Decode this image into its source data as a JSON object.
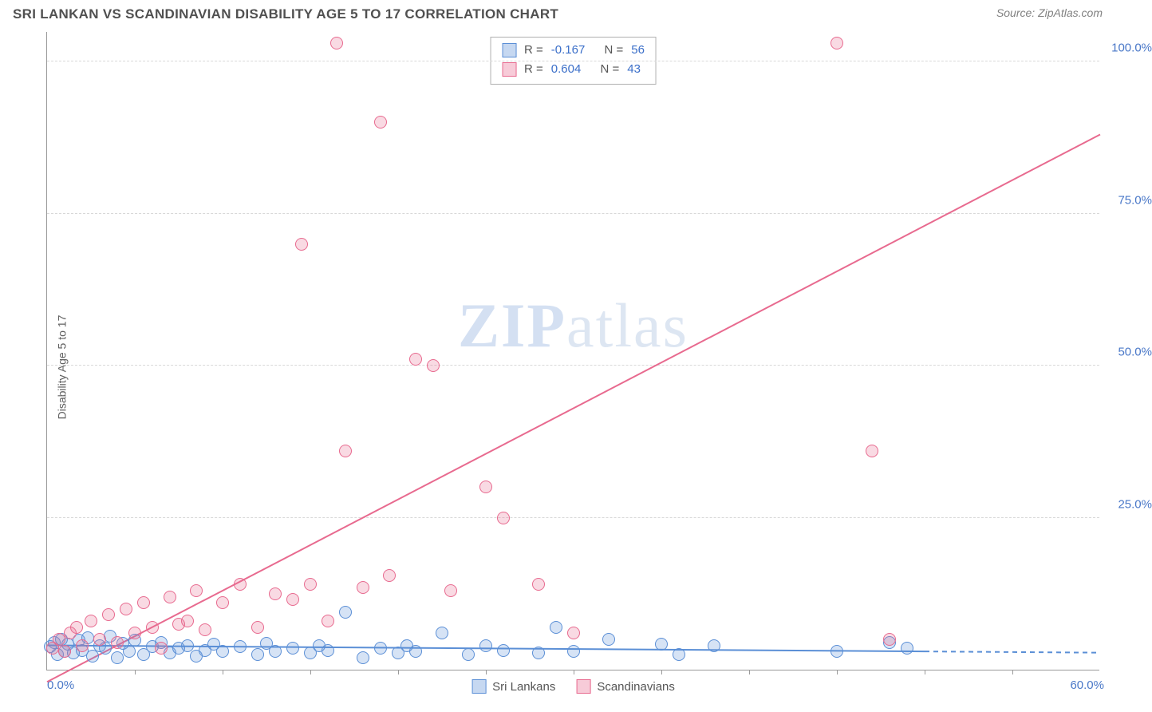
{
  "header": {
    "title": "SRI LANKAN VS SCANDINAVIAN DISABILITY AGE 5 TO 17 CORRELATION CHART",
    "source": "Source: ZipAtlas.com"
  },
  "watermark": {
    "bold": "ZIP",
    "light": "atlas"
  },
  "chart": {
    "type": "scatter",
    "ylabel": "Disability Age 5 to 17",
    "xlim": [
      0,
      60
    ],
    "ylim": [
      0,
      105
    ],
    "x_ticks_minor_step": 5,
    "y_ticks": [
      25,
      50,
      75,
      100
    ],
    "y_tick_labels": [
      "25.0%",
      "50.0%",
      "75.0%",
      "100.0%"
    ],
    "x_left_label": "0.0%",
    "x_right_label": "60.0%",
    "background_color": "#ffffff",
    "grid_color": "#d8d8d8",
    "axis_color": "#9a9a9a",
    "tick_label_color": "#4a78c8",
    "marker_radius": 8,
    "marker_opacity_fill": 0.25,
    "marker_stroke_width": 1.3,
    "series": [
      {
        "name": "Sri Lankans",
        "color": "#5b8fd6",
        "R": "-0.167",
        "N": "56",
        "trend": {
          "x1": 0,
          "y1": 4.0,
          "x2": 50,
          "y2": 3.0,
          "dash_after_x": 50,
          "dash_to_x": 60
        },
        "points": [
          [
            0.2,
            3.8
          ],
          [
            0.4,
            4.5
          ],
          [
            0.6,
            2.5
          ],
          [
            0.8,
            5.0
          ],
          [
            1.0,
            3.0
          ],
          [
            1.2,
            4.2
          ],
          [
            1.5,
            2.8
          ],
          [
            1.8,
            4.8
          ],
          [
            2.0,
            3.2
          ],
          [
            2.3,
            5.2
          ],
          [
            2.6,
            2.2
          ],
          [
            3.0,
            4.0
          ],
          [
            3.3,
            3.5
          ],
          [
            3.6,
            5.5
          ],
          [
            4.0,
            2.0
          ],
          [
            4.3,
            4.3
          ],
          [
            4.7,
            3.0
          ],
          [
            5.0,
            4.8
          ],
          [
            5.5,
            2.5
          ],
          [
            6.0,
            3.8
          ],
          [
            6.5,
            4.5
          ],
          [
            7.0,
            2.8
          ],
          [
            7.5,
            3.5
          ],
          [
            8.0,
            4.0
          ],
          [
            8.5,
            2.2
          ],
          [
            9.0,
            3.2
          ],
          [
            9.5,
            4.2
          ],
          [
            10.0,
            3.0
          ],
          [
            11.0,
            3.8
          ],
          [
            12.0,
            2.5
          ],
          [
            12.5,
            4.3
          ],
          [
            13.0,
            3.0
          ],
          [
            14.0,
            3.5
          ],
          [
            15.0,
            2.8
          ],
          [
            15.5,
            4.0
          ],
          [
            16.0,
            3.2
          ],
          [
            17.0,
            9.5
          ],
          [
            18.0,
            2.0
          ],
          [
            19.0,
            3.5
          ],
          [
            20.0,
            2.8
          ],
          [
            20.5,
            4.0
          ],
          [
            21.0,
            3.0
          ],
          [
            22.5,
            6.0
          ],
          [
            24.0,
            2.5
          ],
          [
            25.0,
            4.0
          ],
          [
            26.0,
            3.2
          ],
          [
            28.0,
            2.8
          ],
          [
            29.0,
            7.0
          ],
          [
            30.0,
            3.0
          ],
          [
            32.0,
            5.0
          ],
          [
            35.0,
            4.2
          ],
          [
            36.0,
            2.5
          ],
          [
            38.0,
            4.0
          ],
          [
            45.0,
            3.0
          ],
          [
            48.0,
            4.5
          ],
          [
            49.0,
            3.5
          ]
        ]
      },
      {
        "name": "Scandinavians",
        "color": "#e86a8f",
        "R": "0.604",
        "N": "43",
        "trend": {
          "x1": 0,
          "y1": -2,
          "x2": 60,
          "y2": 88,
          "dash_after_x": null
        },
        "points": [
          [
            0.3,
            3.5
          ],
          [
            0.7,
            5.0
          ],
          [
            1.0,
            3.0
          ],
          [
            1.3,
            6.0
          ],
          [
            1.7,
            7.0
          ],
          [
            2.0,
            4.0
          ],
          [
            2.5,
            8.0
          ],
          [
            3.0,
            5.0
          ],
          [
            3.5,
            9.0
          ],
          [
            4.0,
            4.5
          ],
          [
            4.5,
            10.0
          ],
          [
            5.0,
            6.0
          ],
          [
            5.5,
            11.0
          ],
          [
            6.0,
            7.0
          ],
          [
            6.5,
            3.5
          ],
          [
            7.0,
            12.0
          ],
          [
            7.5,
            7.5
          ],
          [
            8.0,
            8.0
          ],
          [
            8.5,
            13.0
          ],
          [
            9.0,
            6.5
          ],
          [
            10.0,
            11.0
          ],
          [
            11.0,
            14.0
          ],
          [
            12.0,
            7.0
          ],
          [
            13.0,
            12.5
          ],
          [
            14.0,
            11.5
          ],
          [
            14.5,
            70.0
          ],
          [
            15.0,
            14.0
          ],
          [
            16.0,
            8.0
          ],
          [
            16.5,
            103.0
          ],
          [
            17.0,
            36.0
          ],
          [
            18.0,
            13.5
          ],
          [
            19.0,
            90.0
          ],
          [
            19.5,
            15.5
          ],
          [
            21.0,
            51.0
          ],
          [
            22.0,
            50.0
          ],
          [
            23.0,
            13.0
          ],
          [
            25.0,
            30.0
          ],
          [
            26.0,
            25.0
          ],
          [
            28.0,
            14.0
          ],
          [
            30.0,
            6.0
          ],
          [
            45.0,
            103.0
          ],
          [
            47.0,
            36.0
          ],
          [
            48.0,
            5.0
          ]
        ]
      }
    ],
    "legend_box": {
      "R_label": "R =",
      "N_label": "N ="
    },
    "bottom_legend": [
      "Sri Lankans",
      "Scandinavians"
    ]
  }
}
